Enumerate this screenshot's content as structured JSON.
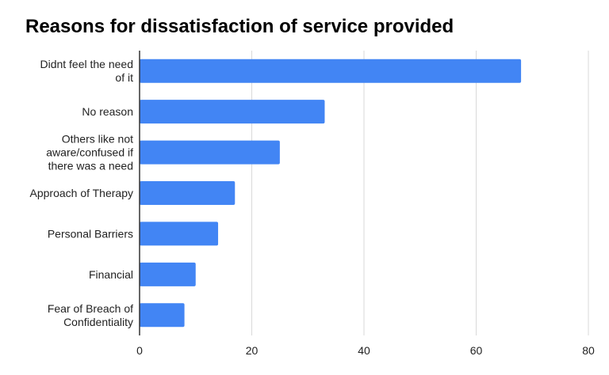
{
  "chart_data": {
    "type": "bar",
    "orientation": "horizontal",
    "title": "Reasons for dissatisfaction of service provided",
    "xlabel": "",
    "ylabel": "",
    "categories": [
      "Didnt feel the need of it",
      "No reason",
      "Others like not aware/confused if there was a need",
      "Approach of Therapy",
      "Personal Barriers",
      "Financial",
      "Fear of Breach of Confidentiality"
    ],
    "category_lines": [
      [
        "Didnt feel the need",
        "of it"
      ],
      [
        "No reason"
      ],
      [
        "Others like not",
        "aware/confused if",
        "there was a need"
      ],
      [
        "Approach of Therapy"
      ],
      [
        "Personal Barriers"
      ],
      [
        "Financial"
      ],
      [
        "Fear of Breach of",
        "Confidentiality"
      ]
    ],
    "values": [
      68,
      33,
      25,
      17,
      14,
      10,
      8
    ],
    "xlim": [
      0,
      80
    ],
    "xticks": [
      0,
      20,
      40,
      60,
      80
    ],
    "grid": "vertical",
    "legend": "none",
    "bar_color": "#4285f4"
  }
}
